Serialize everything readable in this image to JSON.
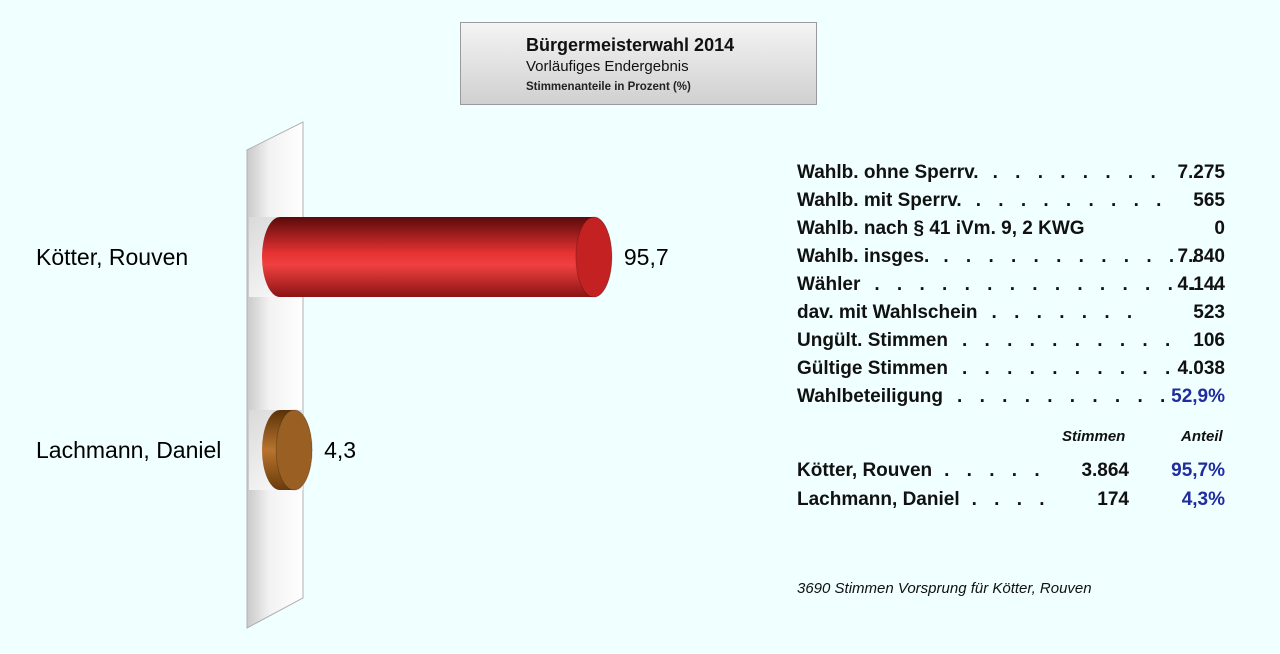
{
  "title": {
    "line1": "Bürgermeisterwahl 2014",
    "line2": "Vorläufiges Endergebnis",
    "line3": "Stimmenanteile in Prozent (%)"
  },
  "chart_data": {
    "type": "bar",
    "orientation": "horizontal",
    "title": "Bürgermeisterwahl 2014",
    "categories": [
      "Kötter, Rouven",
      "Lachmann, Daniel"
    ],
    "values": [
      95.7,
      4.3
    ],
    "value_labels": [
      "95,7",
      "4,3"
    ],
    "colors": [
      "#d42a2a",
      "#a8692a"
    ],
    "xlim": [
      0,
      100
    ],
    "grid": false,
    "legend": "none"
  },
  "stats": [
    {
      "label": "Wahlb. ohne Sperrv.",
      "dots": ". . . . . . . .",
      "value": "7.275"
    },
    {
      "label": "Wahlb. mit Sperrv.",
      "dots": ". . . . . . . . .",
      "value": "565"
    },
    {
      "label": "Wahlb. nach § 41 iVm. 9, 2 KWG",
      "dots": "",
      "value": "0"
    },
    {
      "label": "Wahlb. insges.",
      "dots": ". . . . . . . . . . . .",
      "value": "7.840"
    },
    {
      "label": "Wähler",
      "dots": ". . . . . . . . . . . . . . . .",
      "value": "4.144"
    },
    {
      "label": "dav. mit Wahlschein",
      "dots": ". . . . . . .",
      "value": "523"
    },
    {
      "label": "Ungült. Stimmen",
      "dots": ". . . . . . . . . .",
      "value": "106"
    },
    {
      "label": "Gültige Stimmen",
      "dots": ". . . . . . . . . .",
      "value": "4.038"
    },
    {
      "label": "Wahlbeteiligung",
      "dots": ". . . . . . . . . .",
      "value": "52,9%"
    }
  ],
  "results_header": {
    "votes": "Stimmen",
    "share": "Anteil"
  },
  "results": [
    {
      "name": "Kötter, Rouven",
      "dots": ". . . . .",
      "votes": "3.864",
      "share": "95,7%"
    },
    {
      "name": "Lachmann, Daniel",
      "dots": ". . . .",
      "votes": "174",
      "share": "4,3%"
    }
  ],
  "lead_note": "3690 Stimmen Vorsprung für Kötter, Rouven"
}
